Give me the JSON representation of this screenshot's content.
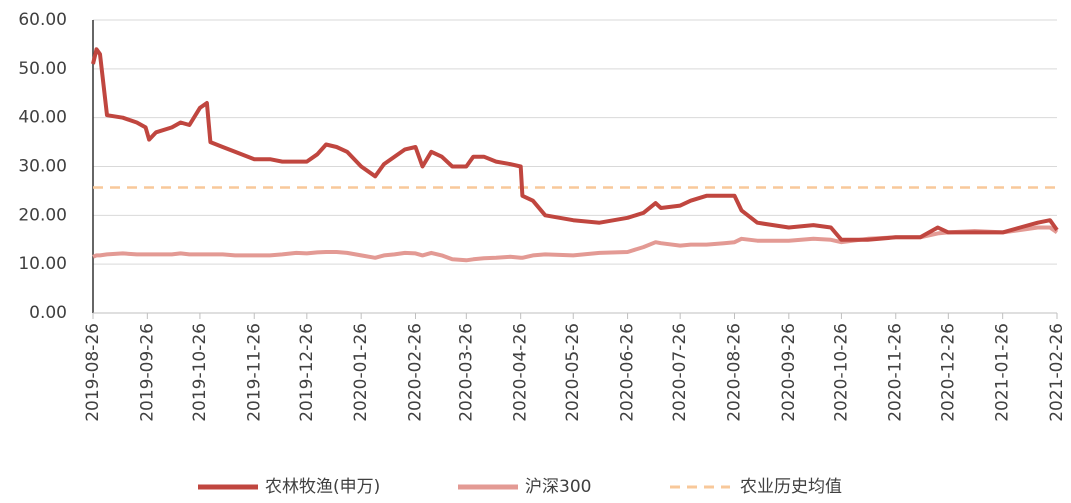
{
  "chart_data": {
    "type": "line",
    "x": [
      "2019-08-26",
      "2019-08-28",
      "2019-08-30",
      "2019-09-03",
      "2019-09-12",
      "2019-09-20",
      "2019-09-25",
      "2019-09-27",
      "2019-10-01",
      "2019-10-10",
      "2019-10-15",
      "2019-10-20",
      "2019-10-26",
      "2019-10-30",
      "2019-11-01",
      "2019-11-08",
      "2019-11-15",
      "2019-11-26",
      "2019-12-05",
      "2019-12-12",
      "2019-12-20",
      "2019-12-26",
      "2020-01-01",
      "2020-01-06",
      "2020-01-12",
      "2020-01-18",
      "2020-01-26",
      "2020-02-03",
      "2020-02-08",
      "2020-02-14",
      "2020-02-20",
      "2020-02-26",
      "2020-03-01",
      "2020-03-06",
      "2020-03-12",
      "2020-03-18",
      "2020-03-26",
      "2020-03-30",
      "2020-04-05",
      "2020-04-12",
      "2020-04-20",
      "2020-04-26",
      "2020-04-27",
      "2020-05-03",
      "2020-05-10",
      "2020-05-26",
      "2020-06-10",
      "2020-06-26",
      "2020-07-05",
      "2020-07-12",
      "2020-07-15",
      "2020-07-26",
      "2020-08-01",
      "2020-08-10",
      "2020-08-20",
      "2020-08-26",
      "2020-08-30",
      "2020-09-08",
      "2020-09-26",
      "2020-10-10",
      "2020-10-20",
      "2020-10-26",
      "2020-11-10",
      "2020-11-26",
      "2020-12-10",
      "2020-12-20",
      "2020-12-26",
      "2021-01-10",
      "2021-01-26",
      "2021-02-05",
      "2021-02-15",
      "2021-02-22",
      "2021-02-26"
    ],
    "series": [
      {
        "name": "农林牧渔(申万)",
        "color": "#c0463f",
        "values": [
          51,
          54,
          53,
          40.5,
          40,
          39,
          38,
          35.5,
          37,
          38,
          39,
          38.5,
          42,
          43,
          35,
          34,
          33,
          31.5,
          31.5,
          31,
          31,
          31,
          32.5,
          34.5,
          34,
          33,
          30,
          28,
          30.5,
          32,
          33.5,
          34,
          30,
          33,
          32,
          30,
          30,
          32,
          32,
          31,
          30.5,
          30,
          24,
          23,
          20,
          19,
          18.5,
          19.5,
          20.5,
          22.5,
          21.5,
          22,
          23,
          24,
          24,
          24,
          21,
          18.5,
          17.5,
          18,
          17.5,
          15,
          15,
          15.5,
          15.5,
          17.5,
          16.5,
          16.5,
          16.5,
          17.5,
          18.5,
          19,
          17
        ]
      },
      {
        "name": "沪深300",
        "color": "#e39a94",
        "values": [
          11.5,
          11.8,
          11.8,
          12,
          12.2,
          12,
          12,
          12,
          12,
          12,
          12.2,
          12,
          12,
          12,
          12,
          12,
          11.8,
          11.8,
          11.8,
          12,
          12.3,
          12.2,
          12.4,
          12.5,
          12.5,
          12.3,
          11.8,
          11.3,
          11.8,
          12,
          12.3,
          12.2,
          11.8,
          12.3,
          11.8,
          11,
          10.8,
          11,
          11.2,
          11.3,
          11.5,
          11.3,
          11.3,
          11.8,
          12,
          11.8,
          12.3,
          12.5,
          13.5,
          14.5,
          14.3,
          13.8,
          14,
          14,
          14.3,
          14.5,
          15.2,
          14.8,
          14.8,
          15.2,
          15,
          14.5,
          15.2,
          15.5,
          15.5,
          16.3,
          16.5,
          16.8,
          16.5,
          17,
          17.5,
          17.5,
          16.5
        ]
      }
    ],
    "reference_line": {
      "name": "农业历史均值",
      "value": 25.7,
      "color": "#f8c89a",
      "dashed": true
    },
    "xlim": [
      "2019-08-26",
      "2021-02-26"
    ],
    "xticks": [
      "2019-08-26",
      "2019-09-26",
      "2019-10-26",
      "2019-11-26",
      "2019-12-26",
      "2020-01-26",
      "2020-02-26",
      "2020-03-26",
      "2020-04-26",
      "2020-05-26",
      "2020-06-26",
      "2020-07-26",
      "2020-08-26",
      "2020-09-26",
      "2020-10-26",
      "2020-11-26",
      "2020-12-26",
      "2021-01-26",
      "2021-02-26"
    ],
    "ylim": [
      0,
      60
    ],
    "yticks": [
      {
        "value": 0,
        "label": "0.00"
      },
      {
        "value": 10,
        "label": "10.00"
      },
      {
        "value": 20,
        "label": "20.00"
      },
      {
        "value": 30,
        "label": "30.00"
      },
      {
        "value": 40,
        "label": "40.00"
      },
      {
        "value": 50,
        "label": "50.00"
      },
      {
        "value": 60,
        "label": "60.00"
      }
    ],
    "grid": true,
    "legend": "bottom"
  }
}
